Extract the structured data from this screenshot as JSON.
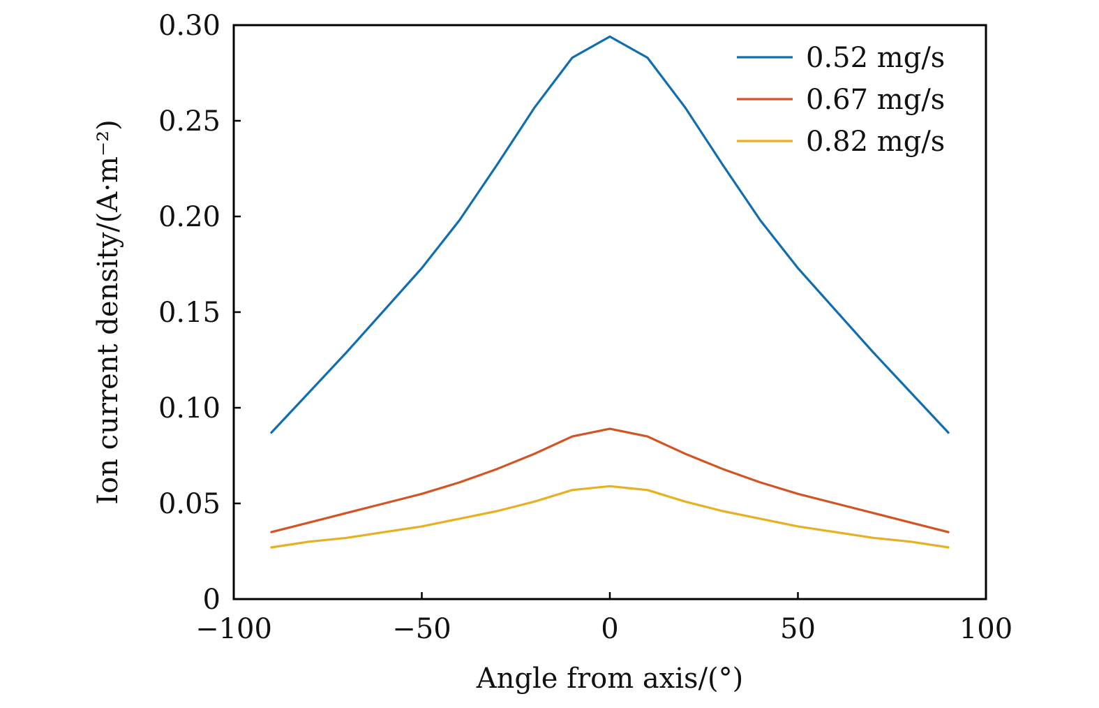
{
  "chart_data": {
    "type": "line",
    "title": "",
    "xlabel": "Angle from axis/(°)",
    "ylabel": "Ion current density/(A·m⁻²)",
    "xlim": [
      -100,
      100
    ],
    "ylim": [
      0,
      0.3
    ],
    "xticks": [
      -100,
      -50,
      0,
      50,
      100
    ],
    "xtick_labels": [
      "−100",
      "−50",
      "0",
      "50",
      "100"
    ],
    "yticks": [
      0,
      0.05,
      0.1,
      0.15,
      0.2,
      0.25,
      0.3
    ],
    "ytick_labels": [
      "0",
      "0.05",
      "0.10",
      "0.15",
      "0.20",
      "0.25",
      "0.30"
    ],
    "grid": false,
    "legend_position": "top-right",
    "x": [
      -90,
      -80,
      -70,
      -60,
      -50,
      -40,
      -30,
      -20,
      -10,
      0,
      10,
      20,
      30,
      40,
      50,
      60,
      70,
      80,
      90
    ],
    "series": [
      {
        "name": "0.52 mg/s",
        "color": "#0F6DB0",
        "values": [
          0.087,
          0.108,
          0.129,
          0.151,
          0.173,
          0.198,
          0.227,
          0.257,
          0.283,
          0.294,
          0.283,
          0.257,
          0.227,
          0.198,
          0.173,
          0.151,
          0.129,
          0.108,
          0.087
        ]
      },
      {
        "name": "0.67 mg/s",
        "color": "#D35422",
        "values": [
          0.035,
          0.04,
          0.045,
          0.05,
          0.055,
          0.061,
          0.068,
          0.076,
          0.085,
          0.089,
          0.085,
          0.076,
          0.068,
          0.061,
          0.055,
          0.05,
          0.045,
          0.04,
          0.035
        ]
      },
      {
        "name": "0.82 mg/s",
        "color": "#E8B021",
        "values": [
          0.027,
          0.03,
          0.032,
          0.035,
          0.038,
          0.042,
          0.046,
          0.051,
          0.057,
          0.059,
          0.057,
          0.051,
          0.046,
          0.042,
          0.038,
          0.035,
          0.032,
          0.03,
          0.027
        ]
      }
    ]
  }
}
